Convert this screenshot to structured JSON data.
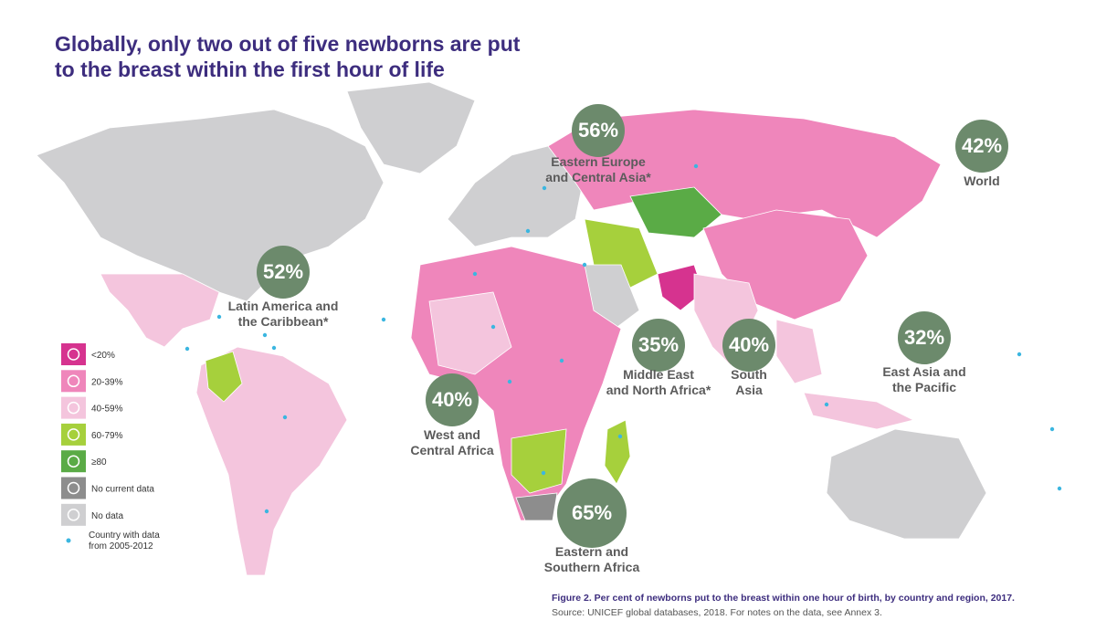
{
  "title": [
    "Globally, only two out of five newborns are put",
    "to the breast within the first hour of life"
  ],
  "regions": [
    {
      "label": "56%",
      "name": [
        "Eastern Europe",
        "and Central Asia*"
      ]
    },
    {
      "label": "42%",
      "name": [
        "World"
      ]
    },
    {
      "label": "52%",
      "name": [
        "Latin America and",
        "the Caribbean*"
      ]
    },
    {
      "label": "35%",
      "name": [
        "Middle East",
        "and North Africa*"
      ]
    },
    {
      "label": "40%",
      "name": [
        "South",
        "Asia"
      ]
    },
    {
      "label": "32%",
      "name": [
        "East Asia and",
        "the Pacific"
      ]
    },
    {
      "label": "40%",
      "name": [
        "West and",
        "Central Africa"
      ]
    },
    {
      "label": "65%",
      "name": [
        "Eastern and",
        "Southern Africa"
      ]
    }
  ],
  "legend": [
    {
      "label": "<20%",
      "color": "#d6338f"
    },
    {
      "label": "20-39%",
      "color": "#ef86bb"
    },
    {
      "label": "40-59%",
      "color": "#f4c5dd"
    },
    {
      "label": "60-79%",
      "color": "#a6d03c"
    },
    {
      "label": "≥80",
      "color": "#5aab46"
    },
    {
      "label": "No current data",
      "color": "#8d8d8d"
    },
    {
      "label": "No data",
      "color": "#cfcfd1"
    }
  ],
  "dot_legend": [
    "Country with data",
    "from 2005-2012"
  ],
  "caption": "Figure 2. Per cent of newborns put to the breast within one hour of birth, by country and region, 2017.",
  "source": "Source: UNICEF global databases, 2018. For notes on the data, see Annex 3."
}
